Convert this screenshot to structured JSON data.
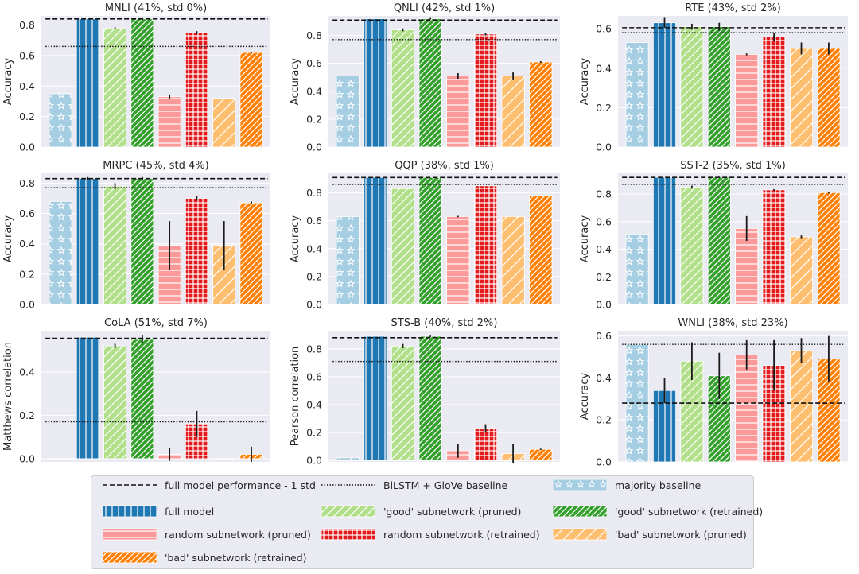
{
  "styles": {
    "majority baseline": {
      "fill": "#a6cee3",
      "hatch": "stars"
    },
    "full model": {
      "fill": "#1f78b4",
      "hatch": "vlines"
    },
    "'good' subnetwork (pruned)": {
      "fill": "#b2df8a",
      "hatch": "diag"
    },
    "'good' subnetwork (retrained)": {
      "fill": "#33a02c",
      "hatch": "diagdense"
    },
    "random subnetwork (pruned)": {
      "fill": "#fb9a99",
      "hatch": "hlines"
    },
    "random subnetwork (retrained)": {
      "fill": "#e31a1c",
      "hatch": "grid"
    },
    "'bad' subnetwork (pruned)": {
      "fill": "#fdbf6f",
      "hatch": "diagwide"
    },
    "'bad' subnetwork (retrained)": {
      "fill": "#ff7f00",
      "hatch": "diagdense"
    }
  },
  "legend": {
    "items": [
      {
        "label": "full model performance - 1 std",
        "kind": "dashed"
      },
      {
        "label": "BiLSTM + GloVe baseline",
        "kind": "dotted"
      },
      {
        "label": "majority baseline",
        "kind": "bar"
      },
      {
        "label": "full model",
        "kind": "bar"
      },
      {
        "label": "'good' subnetwork (pruned)",
        "kind": "bar"
      },
      {
        "label": "'good' subnetwork (retrained)",
        "kind": "bar"
      },
      {
        "label": "random subnetwork (pruned)",
        "kind": "bar"
      },
      {
        "label": "random subnetwork (retrained)",
        "kind": "bar"
      },
      {
        "label": "'bad' subnetwork (pruned)",
        "kind": "bar"
      },
      {
        "label": "'bad' subnetwork (retrained)",
        "kind": "bar"
      }
    ]
  },
  "chart_data": [
    {
      "type": "bar",
      "title": "MNLI (41%, std 0%)",
      "ylabel": "Accuracy",
      "ylim": [
        0,
        0.86
      ],
      "yticks": [
        "0.0",
        "0.2",
        "0.4",
        "0.6",
        "0.8"
      ],
      "ytick_values": [
        0,
        0.2,
        0.4,
        0.6,
        0.8
      ],
      "categories": [
        "majority baseline",
        "full model",
        "'good' subnetwork (pruned)",
        "'good' subnetwork (retrained)",
        "random subnetwork (pruned)",
        "random subnetwork (retrained)",
        "'bad' subnetwork (pruned)",
        "'bad' subnetwork (retrained)"
      ],
      "values": [
        0.35,
        0.84,
        0.78,
        0.84,
        0.33,
        0.75,
        0.32,
        0.62
      ],
      "errors": [
        0,
        0,
        0.005,
        0.005,
        0.015,
        0.01,
        0,
        0.005
      ],
      "full_model_minus_std": 0.84,
      "bilstm_baseline": 0.66
    },
    {
      "type": "bar",
      "title": "QNLI (42%, std 1%)",
      "ylabel": "Accuracy",
      "ylim": [
        0,
        0.94
      ],
      "yticks": [
        "0.0",
        "0.2",
        "0.4",
        "0.6",
        "0.8"
      ],
      "ytick_values": [
        0,
        0.2,
        0.4,
        0.6,
        0.8
      ],
      "categories": [
        "majority baseline",
        "full model",
        "'good' subnetwork (pruned)",
        "'good' subnetwork (retrained)",
        "random subnetwork (pruned)",
        "random subnetwork (retrained)",
        "'bad' subnetwork (pruned)",
        "'bad' subnetwork (retrained)"
      ],
      "values": [
        0.51,
        0.92,
        0.84,
        0.92,
        0.51,
        0.81,
        0.51,
        0.61
      ],
      "errors": [
        0,
        0,
        0.01,
        0.005,
        0.02,
        0.01,
        0.025,
        0.005
      ],
      "full_model_minus_std": 0.91,
      "bilstm_baseline": 0.77
    },
    {
      "type": "bar",
      "title": "RTE (43%, std 2%)",
      "ylabel": "Accuracy",
      "ylim": [
        0,
        0.665
      ],
      "yticks": [
        "0.0",
        "0.2",
        "0.4",
        "0.6"
      ],
      "ytick_values": [
        0,
        0.2,
        0.4,
        0.6
      ],
      "categories": [
        "majority baseline",
        "full model",
        "'good' subnetwork (pruned)",
        "'good' subnetwork (retrained)",
        "random subnetwork (pruned)",
        "random subnetwork (retrained)",
        "'bad' subnetwork (pruned)",
        "'bad' subnetwork (retrained)"
      ],
      "values": [
        0.53,
        0.63,
        0.61,
        0.61,
        0.47,
        0.56,
        0.5,
        0.5
      ],
      "errors": [
        0,
        0.025,
        0.015,
        0.02,
        0.005,
        0.02,
        0.03,
        0.03
      ],
      "full_model_minus_std": 0.605,
      "bilstm_baseline": 0.58
    },
    {
      "type": "bar",
      "title": "MRPC (45%, std 4%)",
      "ylabel": "Accuracy",
      "ylim": [
        0,
        0.865
      ],
      "yticks": [
        "0.0",
        "0.2",
        "0.4",
        "0.6",
        "0.8"
      ],
      "ytick_values": [
        0,
        0.2,
        0.4,
        0.6,
        0.8
      ],
      "categories": [
        "majority baseline",
        "full model",
        "'good' subnetwork (pruned)",
        "'good' subnetwork (retrained)",
        "random subnetwork (pruned)",
        "random subnetwork (retrained)",
        "'bad' subnetwork (pruned)",
        "'bad' subnetwork (retrained)"
      ],
      "values": [
        0.68,
        0.83,
        0.78,
        0.83,
        0.39,
        0.7,
        0.39,
        0.67
      ],
      "errors": [
        0,
        0.01,
        0.02,
        0.01,
        0.16,
        0.015,
        0.16,
        0.01
      ],
      "full_model_minus_std": 0.83,
      "bilstm_baseline": 0.77
    },
    {
      "type": "bar",
      "title": "QQP (38%, std 1%)",
      "ylabel": "Accuracy",
      "ylim": [
        0,
        0.94
      ],
      "yticks": [
        "0.0",
        "0.2",
        "0.4",
        "0.6",
        "0.8"
      ],
      "ytick_values": [
        0,
        0.2,
        0.4,
        0.6,
        0.8
      ],
      "categories": [
        "majority baseline",
        "full model",
        "'good' subnetwork (pruned)",
        "'good' subnetwork (retrained)",
        "random subnetwork (pruned)",
        "random subnetwork (retrained)",
        "'bad' subnetwork (pruned)",
        "'bad' subnetwork (retrained)"
      ],
      "values": [
        0.63,
        0.91,
        0.83,
        0.91,
        0.63,
        0.85,
        0.63,
        0.78
      ],
      "errors": [
        0,
        0,
        0,
        0,
        0.005,
        0,
        0,
        0
      ],
      "full_model_minus_std": 0.91,
      "bilstm_baseline": 0.86
    },
    {
      "type": "bar",
      "title": "SST-2 (35%, std 1%)",
      "ylabel": "Accuracy",
      "ylim": [
        0,
        0.95
      ],
      "yticks": [
        "0.0",
        "0.2",
        "0.4",
        "0.6",
        "0.8"
      ],
      "ytick_values": [
        0,
        0.2,
        0.4,
        0.6,
        0.8
      ],
      "categories": [
        "majority baseline",
        "full model",
        "'good' subnetwork (pruned)",
        "'good' subnetwork (retrained)",
        "random subnetwork (pruned)",
        "random subnetwork (retrained)",
        "'bad' subnetwork (pruned)",
        "'bad' subnetwork (retrained)"
      ],
      "values": [
        0.51,
        0.92,
        0.85,
        0.92,
        0.55,
        0.83,
        0.49,
        0.81
      ],
      "errors": [
        0,
        0,
        0.01,
        0.005,
        0.09,
        0.005,
        0.01,
        0.005
      ],
      "full_model_minus_std": 0.92,
      "bilstm_baseline": 0.87
    },
    {
      "type": "bar",
      "title": "CoLA (51%, std 7%)",
      "ylabel": "Matthews correlation",
      "ylim": [
        -0.015,
        0.59
      ],
      "yticks": [
        "0.0",
        "0.2",
        "0.4"
      ],
      "ytick_values": [
        0,
        0.2,
        0.4
      ],
      "categories": [
        "majority baseline",
        "full model",
        "'good' subnetwork (pruned)",
        "'good' subnetwork (retrained)",
        "random subnetwork (pruned)",
        "random subnetwork (retrained)",
        "'bad' subnetwork (pruned)",
        "'bad' subnetwork (retrained)"
      ],
      "values": [
        0,
        0.56,
        0.52,
        0.55,
        0.02,
        0.16,
        0,
        0.02
      ],
      "errors": [
        0,
        0,
        0.01,
        0.02,
        0.03,
        0.06,
        0,
        0.035
      ],
      "full_model_minus_std": 0.555,
      "bilstm_baseline": 0.17
    },
    {
      "type": "bar",
      "title": "STS-B (40%, std 2%)",
      "ylabel": "Pearson correlation",
      "ylim": [
        -0.01,
        0.93
      ],
      "yticks": [
        "0.0",
        "0.2",
        "0.4",
        "0.6",
        "0.8"
      ],
      "ytick_values": [
        0,
        0.2,
        0.4,
        0.6,
        0.8
      ],
      "categories": [
        "majority baseline",
        "full model",
        "'good' subnetwork (pruned)",
        "'good' subnetwork (retrained)",
        "random subnetwork (pruned)",
        "random subnetwork (retrained)",
        "'bad' subnetwork (pruned)",
        "'bad' subnetwork (retrained)"
      ],
      "values": [
        0.02,
        0.89,
        0.82,
        0.89,
        0.07,
        0.23,
        0.05,
        0.08
      ],
      "errors": [
        0,
        0,
        0.015,
        0.005,
        0.05,
        0.03,
        0.07,
        0.005
      ],
      "full_model_minus_std": 0.88,
      "bilstm_baseline": 0.71
    },
    {
      "type": "bar",
      "title": "WNLI (38%, std 23%)",
      "ylabel": "Accuracy",
      "ylim": [
        0,
        0.625
      ],
      "yticks": [
        "0.0",
        "0.2",
        "0.4",
        "0.6"
      ],
      "ytick_values": [
        0,
        0.2,
        0.4,
        0.6
      ],
      "categories": [
        "majority baseline",
        "full model",
        "'good' subnetwork (pruned)",
        "'good' subnetwork (retrained)",
        "random subnetwork (pruned)",
        "random subnetwork (retrained)",
        "'bad' subnetwork (pruned)",
        "'bad' subnetwork (retrained)"
      ],
      "values": [
        0.56,
        0.34,
        0.48,
        0.41,
        0.51,
        0.46,
        0.53,
        0.49
      ],
      "errors": [
        0,
        0.06,
        0.09,
        0.11,
        0.07,
        0.12,
        0.06,
        0.11
      ],
      "full_model_minus_std": 0.28,
      "bilstm_baseline": 0.56
    }
  ]
}
